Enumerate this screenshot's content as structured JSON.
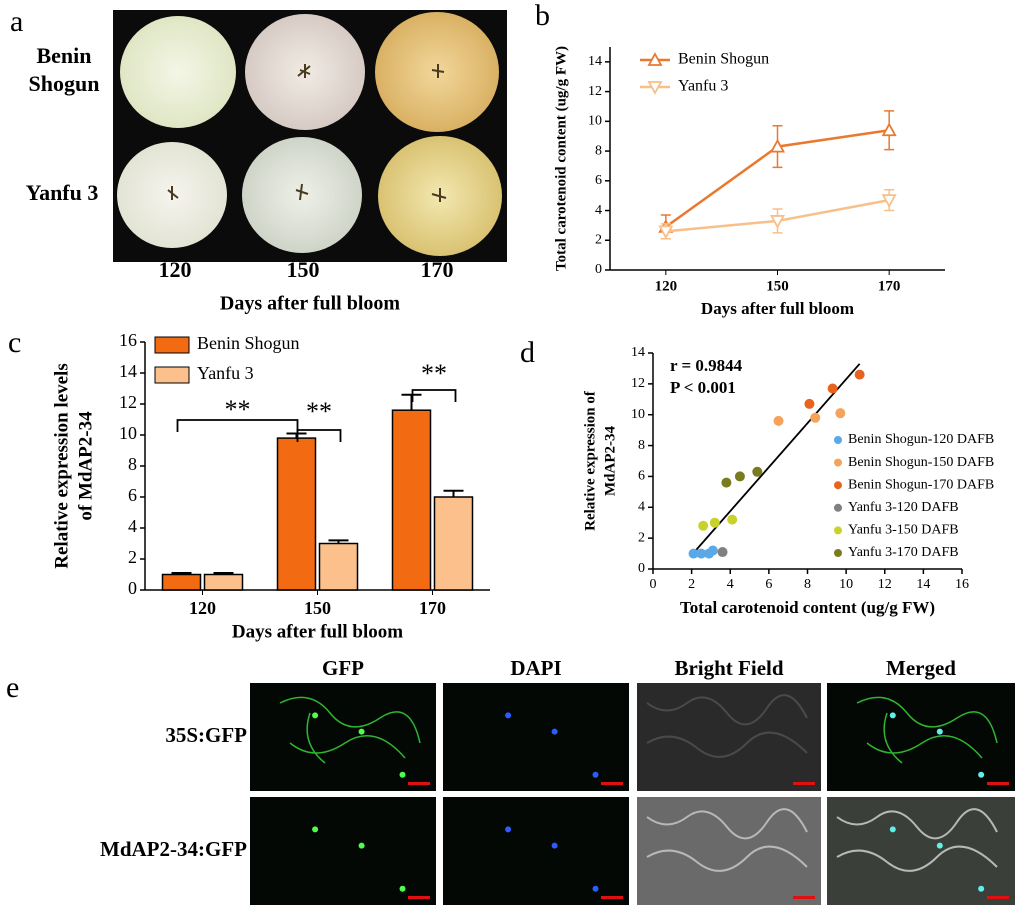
{
  "panel_labels": [
    "a",
    "b",
    "c",
    "d",
    "e"
  ],
  "photo_panel": {
    "rows": [
      "Benin Shogun",
      "Yanfu 3"
    ],
    "columns": [
      "120",
      "150",
      "170"
    ],
    "xlabel": "Days after full bloom"
  },
  "chart_data": [
    {
      "type": "line",
      "xlabel": "Days after full bloom",
      "ylabel": "Total carotenoid content (ug/g FW)",
      "categories": [
        "120",
        "150",
        "170"
      ],
      "ylim": [
        0,
        15
      ],
      "yticks": [
        0,
        2,
        4,
        6,
        8,
        10,
        12,
        14
      ],
      "series": [
        {
          "name": "Benin Shogun",
          "color": "#e8792f",
          "marker": "triangle-up",
          "values": [
            2.9,
            8.3,
            9.4
          ],
          "errors": [
            0.8,
            1.4,
            1.3
          ]
        },
        {
          "name": "Yanfu 3",
          "color": "#f7bf8a",
          "marker": "triangle-down",
          "values": [
            2.6,
            3.3,
            4.7
          ],
          "errors": [
            0.5,
            0.8,
            0.7
          ]
        }
      ]
    },
    {
      "type": "bar",
      "xlabel": "Days after full bloom",
      "ylabel": [
        "Relative expression levels",
        "of MdAP2-34"
      ],
      "categories": [
        "120",
        "150",
        "170"
      ],
      "ylim": [
        0,
        16
      ],
      "yticks": [
        0,
        2,
        4,
        6,
        8,
        10,
        12,
        14,
        16
      ],
      "series": [
        {
          "name": "Benin Shogun",
          "color": "#f26a12",
          "values": [
            1.0,
            9.8,
            11.6
          ],
          "errors": [
            0.1,
            0.3,
            1.0
          ]
        },
        {
          "name": "Yanfu 3",
          "color": "#fbc08c",
          "values": [
            1.0,
            3.0,
            6.0
          ],
          "errors": [
            0.1,
            0.2,
            0.4
          ]
        }
      ],
      "annotations": [
        "**",
        "**",
        "**"
      ]
    },
    {
      "type": "scatter",
      "xlabel": "Total carotenoid content (ug/g FW)",
      "ylabel": [
        "Relative expression of",
        "MdAP2-34"
      ],
      "xlim": [
        0,
        16
      ],
      "xticks": [
        0,
        2,
        4,
        6,
        8,
        10,
        12,
        14,
        16
      ],
      "ylim": [
        0,
        14
      ],
      "yticks": [
        0,
        2,
        4,
        6,
        8,
        10,
        12,
        14
      ],
      "annotations": [
        "r = 0.9844",
        "P < 0.001"
      ],
      "fit_line": {
        "x": [
          2.0,
          10.7
        ],
        "y": [
          0.9,
          13.3
        ]
      },
      "series": [
        {
          "name": "Benin Shogun-120 DAFB",
          "color": "#5aa8e6",
          "x": [
            2.1,
            2.5,
            2.9,
            3.1
          ],
          "values": [
            1.0,
            1.0,
            1.0,
            1.2
          ]
        },
        {
          "name": "Benin Shogun-150 DAFB",
          "color": "#f5a35a",
          "x": [
            6.5,
            8.4,
            9.7
          ],
          "values": [
            9.6,
            9.8,
            10.1
          ]
        },
        {
          "name": "Benin Shogun-170 DAFB",
          "color": "#e8641e",
          "x": [
            8.1,
            9.3,
            10.7
          ],
          "values": [
            10.7,
            11.7,
            12.6
          ]
        },
        {
          "name": "Yanfu 3-120 DAFB",
          "color": "#808080",
          "x": [
            3.6
          ],
          "values": [
            1.1
          ]
        },
        {
          "name": "Yanfu 3-150 DAFB",
          "color": "#c8d22a",
          "x": [
            2.6,
            3.2,
            4.1
          ],
          "values": [
            2.8,
            3.0,
            3.2
          ]
        },
        {
          "name": "Yanfu 3-170 DAFB",
          "color": "#7a7a1e",
          "x": [
            3.8,
            4.5,
            5.4
          ],
          "values": [
            5.6,
            6.0,
            6.3
          ]
        }
      ]
    }
  ],
  "microscopy": {
    "columns": [
      "GFP",
      "DAPI",
      "Bright Field",
      "Merged"
    ],
    "rows": [
      "35S:GFP",
      "MdAP2-34:GFP"
    ]
  }
}
